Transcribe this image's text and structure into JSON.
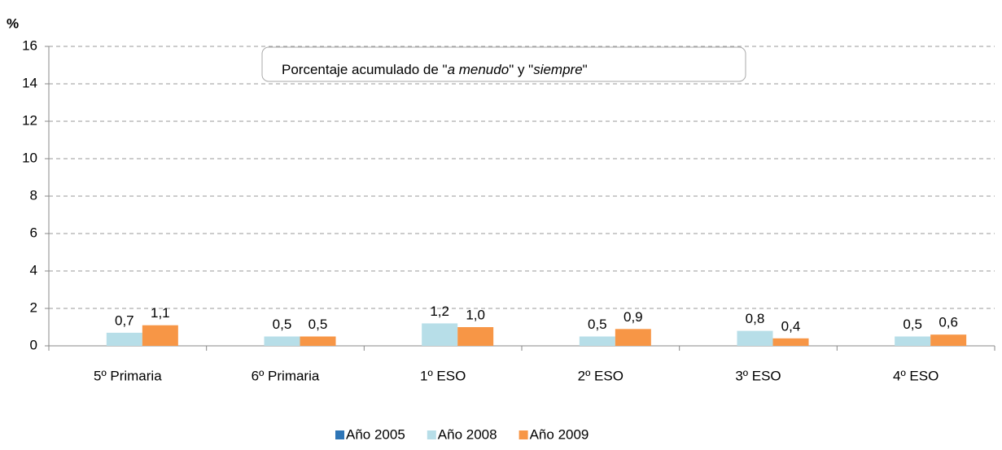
{
  "chart_data": {
    "type": "bar",
    "ylabel": "%",
    "annotation": [
      "Porcentaje acumulado de \"",
      "a menudo",
      "\" y \"",
      "siempre",
      "\""
    ],
    "categories": [
      "5º Primaria",
      "6º Primaria",
      "1º ESO",
      "2º ESO",
      "3º ESO",
      "4º ESO"
    ],
    "series": [
      {
        "name": "Año 2005",
        "color": "#2e75b6",
        "values": [
          null,
          null,
          null,
          null,
          null,
          null
        ]
      },
      {
        "name": "Año 2008",
        "color": "#b7dee8",
        "values": [
          0.7,
          0.5,
          1.2,
          0.5,
          0.8,
          0.5
        ],
        "value_labels": [
          "0,7",
          "0,5",
          "1,2",
          "0,5",
          "0,8",
          "0,5"
        ]
      },
      {
        "name": "Año 2009",
        "color": "#f79646",
        "values": [
          1.1,
          0.5,
          1.0,
          0.9,
          0.4,
          0.6
        ],
        "value_labels": [
          "1,1",
          "0,5",
          "1,0",
          "0,9",
          "0,4",
          "0,6"
        ]
      }
    ],
    "ylim": [
      0,
      16
    ],
    "yticks": [
      0,
      2,
      4,
      6,
      8,
      10,
      12,
      14,
      16
    ],
    "grid": true,
    "legend": "bottom"
  }
}
